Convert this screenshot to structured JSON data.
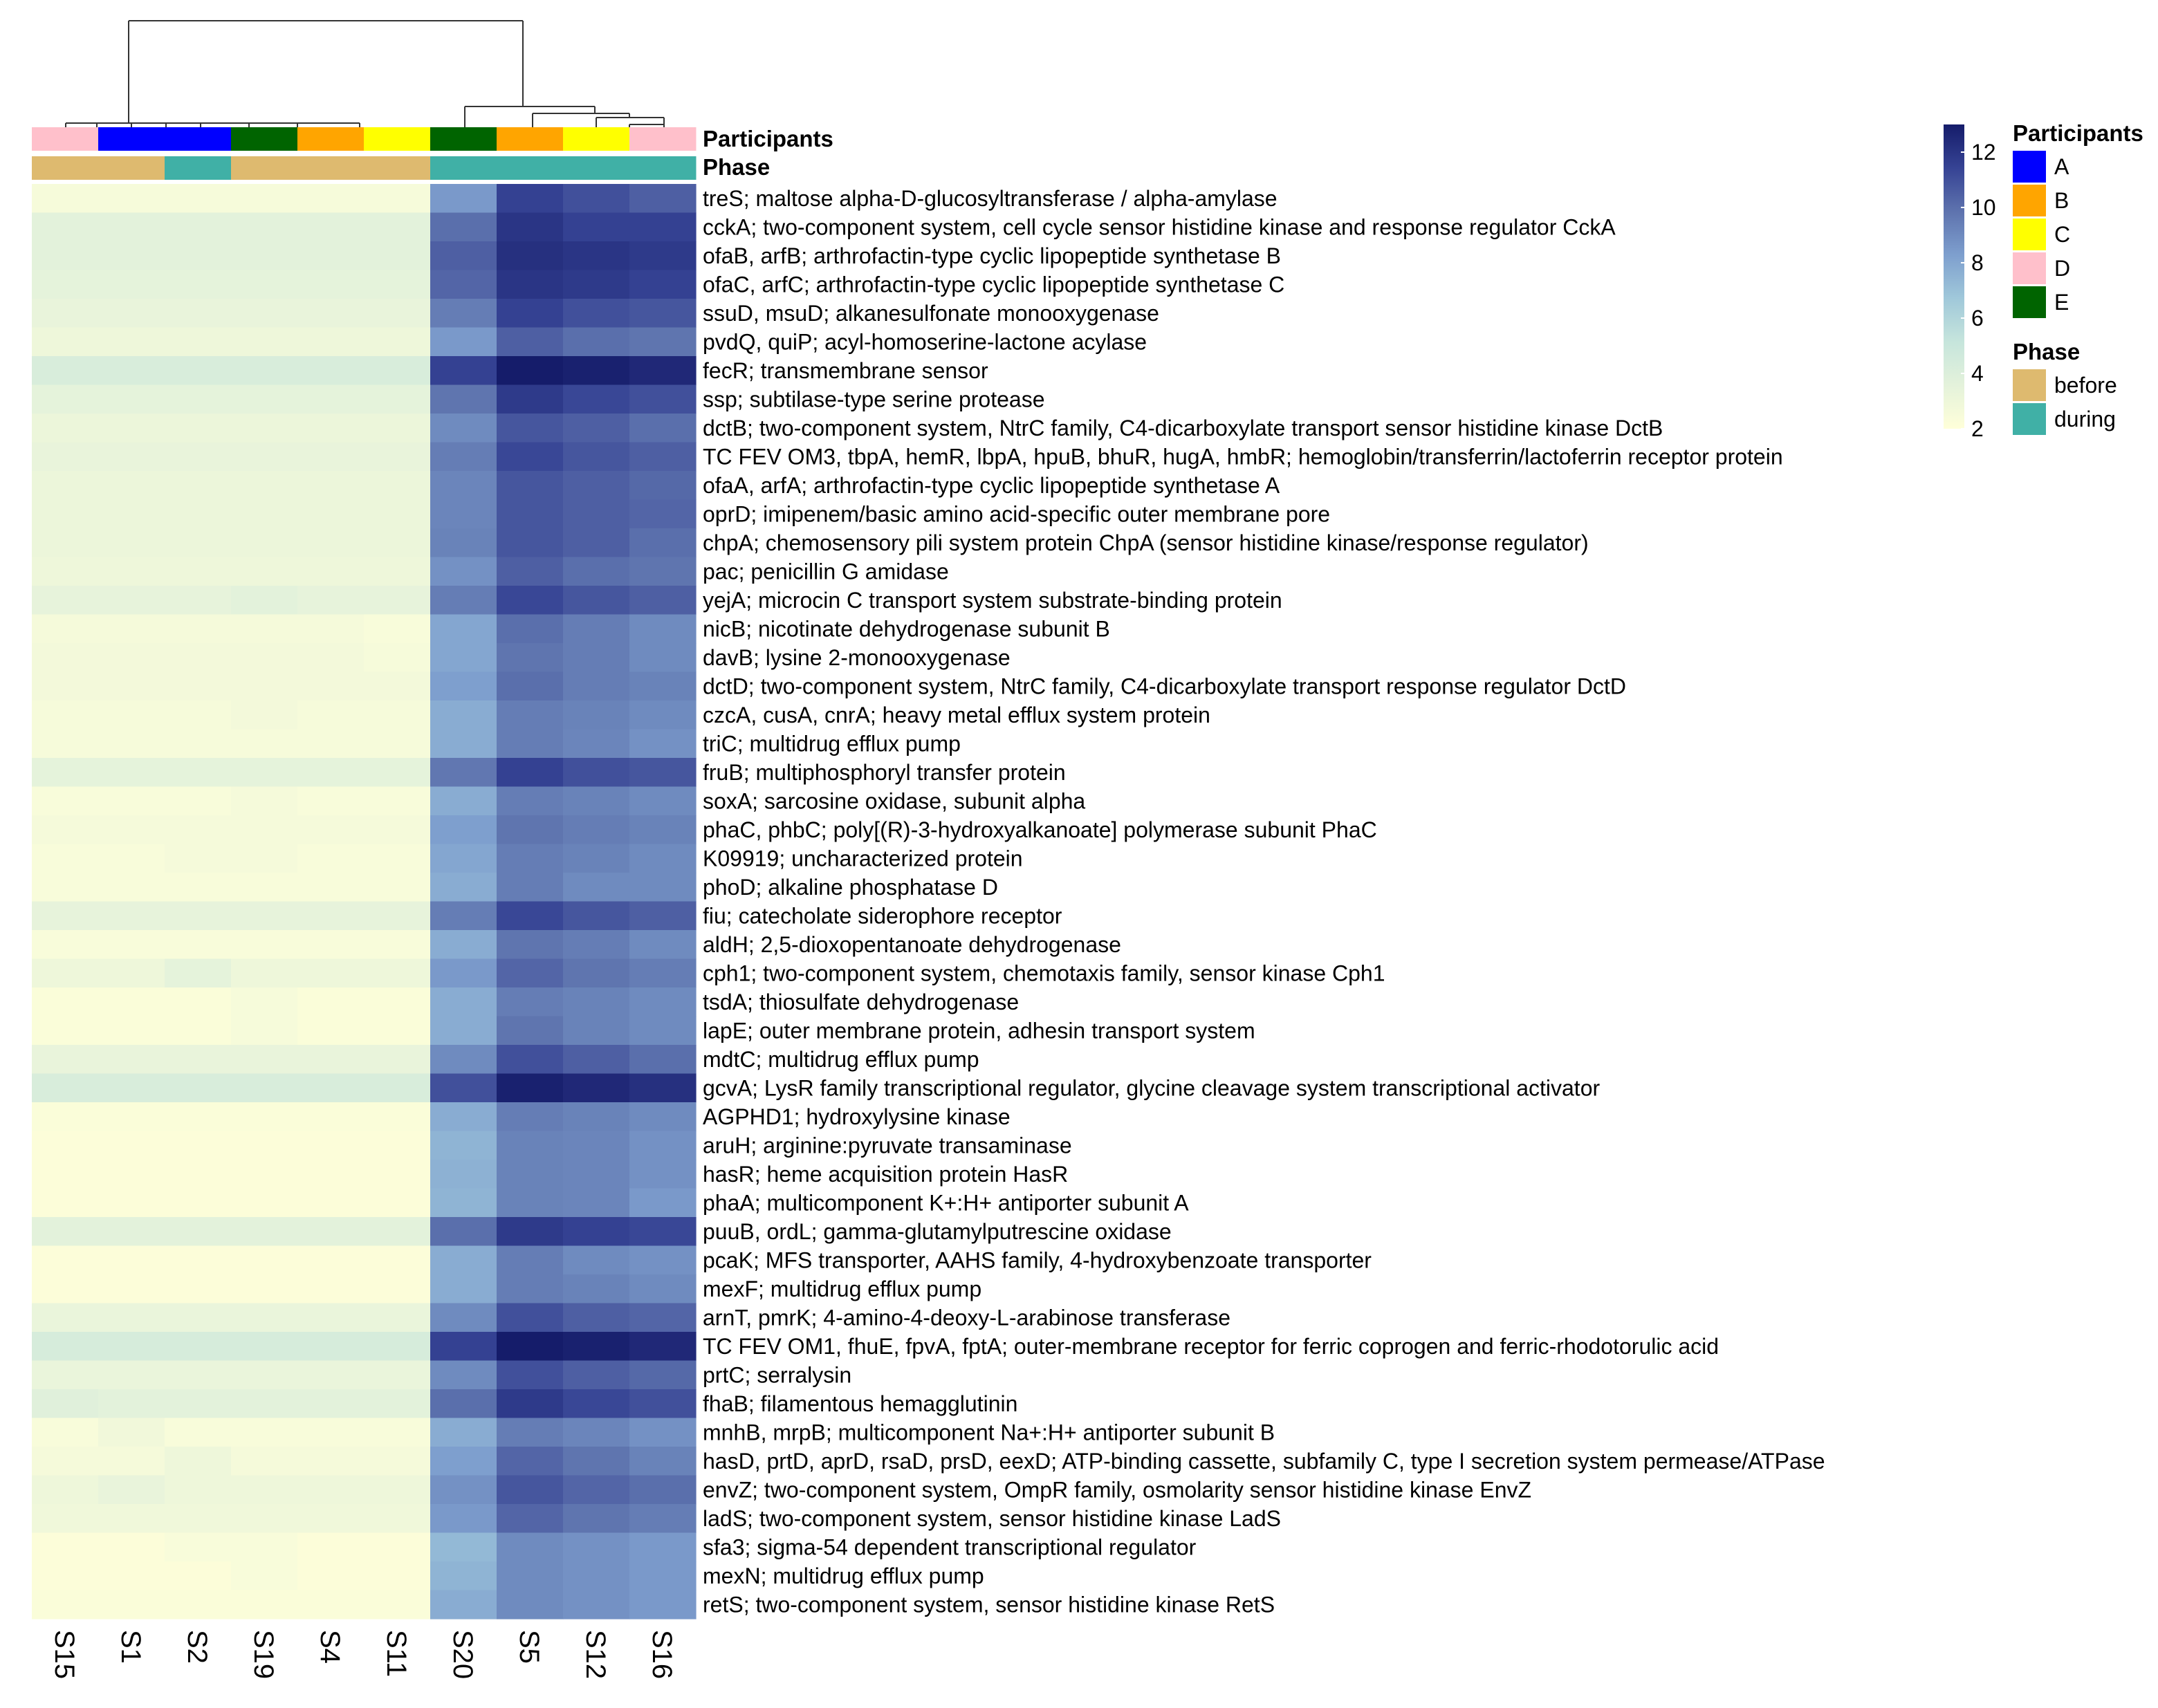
{
  "chart_data": {
    "type": "heatmap",
    "columns": [
      "S15",
      "S1",
      "S2",
      "S19",
      "S4",
      "S11",
      "S20",
      "S5",
      "S12",
      "S16"
    ],
    "annotations": {
      "participants": {
        "label": "Participants",
        "values": [
          "D",
          "A",
          "A",
          "E",
          "B",
          "C",
          "E",
          "B",
          "C",
          "D"
        ],
        "colors": {
          "A": "#0000FF",
          "B": "#FFA500",
          "C": "#FFFF00",
          "D": "#FFC0CB",
          "E": "#006400"
        }
      },
      "phase": {
        "label": "Phase",
        "values": [
          "before",
          "before",
          "during",
          "before",
          "before",
          "before",
          "during",
          "during",
          "during",
          "during"
        ],
        "colors": {
          "before": "#DEBA6F",
          "during": "#40B0A6"
        }
      }
    },
    "rows": [
      {
        "label": "treS; maltose alpha-D-glucosyltransferase / alpha-amylase",
        "values": [
          2.5,
          2.5,
          2.5,
          2.5,
          2.5,
          2.5,
          8.5,
          11.5,
          11,
          10.5
        ]
      },
      {
        "label": "cckA; two-component system, cell cycle sensor histidine kinase and response regulator CckA",
        "values": [
          3.6,
          3.6,
          3.6,
          3.6,
          3.6,
          3.6,
          10,
          12,
          11.5,
          11.5
        ]
      },
      {
        "label": "ofaB, arfB; arthrofactin-type cyclic lipopeptide synthetase B",
        "values": [
          3.6,
          3.6,
          3.6,
          3.6,
          3.6,
          3.6,
          10.5,
          12.2,
          12,
          11.8
        ]
      },
      {
        "label": "ofaC, arfC; arthrofactin-type cyclic lipopeptide synthetase C",
        "values": [
          3.5,
          3.5,
          3.5,
          3.5,
          3.5,
          3.5,
          10.3,
          12,
          11.8,
          11.5
        ]
      },
      {
        "label": "ssuD, msuD; alkanesulfonate monooxygenase",
        "values": [
          3.3,
          3.3,
          3.3,
          3.3,
          3.3,
          3.3,
          9.5,
          11.5,
          11,
          10.8
        ]
      },
      {
        "label": "pvdQ, quiP; acyl-homoserine-lactone acylase",
        "values": [
          3,
          3,
          3,
          3,
          3,
          3,
          8.5,
          10.5,
          10,
          9.8
        ]
      },
      {
        "label": "fecR; transmembrane sensor",
        "values": [
          4.2,
          4.2,
          4.2,
          4.2,
          4.2,
          4.2,
          11.5,
          13,
          12.8,
          12.5
        ]
      },
      {
        "label": "ssp; subtilase-type serine protease",
        "values": [
          3.5,
          3.5,
          3.5,
          3.5,
          3.5,
          3.5,
          9.8,
          11.8,
          11.3,
          11
        ]
      },
      {
        "label": "dctB; two-component system, NtrC family, C4-dicarboxylate transport sensor histidine kinase DctB",
        "values": [
          3.1,
          3.1,
          3.1,
          3.1,
          3.1,
          3.1,
          9,
          10.8,
          10.5,
          10
        ]
      },
      {
        "label": "TC FEV OM3, tbpA, hemR, lbpA, hpuB, bhuR, hugA, hmbR; hemoglobin/transferrin/lactoferrin receptor protein",
        "values": [
          3.3,
          3.3,
          3.3,
          3.3,
          3.3,
          3.3,
          9.5,
          11.3,
          10.8,
          10.5
        ]
      },
      {
        "label": "ofaA, arfA; arthrofactin-type cyclic lipopeptide synthetase A",
        "values": [
          3.1,
          3.1,
          3.1,
          3.1,
          3.1,
          3.1,
          9.2,
          10.8,
          10.5,
          10.2
        ]
      },
      {
        "label": "oprD; imipenem/basic amino acid-specific outer membrane pore",
        "values": [
          3.1,
          3.1,
          3.1,
          3.1,
          3.1,
          3.1,
          9.2,
          10.8,
          10.5,
          10.3
        ]
      },
      {
        "label": "chpA; chemosensory pili system protein ChpA (sensor histidine kinase/response regulator)",
        "values": [
          3.1,
          3.1,
          3.1,
          3.1,
          3.1,
          3.1,
          9.3,
          10.8,
          10.5,
          10
        ]
      },
      {
        "label": "pac; penicillin G amidase",
        "values": [
          3,
          3,
          3,
          3,
          3,
          3,
          8.8,
          10.5,
          10,
          9.8
        ]
      },
      {
        "label": "yejA; microcin C transport system substrate-binding protein",
        "values": [
          3.4,
          3.4,
          3.4,
          3.6,
          3.4,
          3.4,
          9.5,
          11.3,
          10.8,
          10.5
        ]
      },
      {
        "label": "nicB; nicotinate dehydrogenase subunit B",
        "values": [
          2.6,
          2.6,
          2.6,
          2.6,
          2.6,
          2.4,
          8,
          10,
          9.5,
          9
        ]
      },
      {
        "label": "davB; lysine 2-monooxygenase",
        "values": [
          2.7,
          2.7,
          2.7,
          2.7,
          2.7,
          2.5,
          8,
          9.8,
          9.5,
          9
        ]
      },
      {
        "label": "dctD; two-component system, NtrC family, C4-dicarboxylate transport response regulator DctD",
        "values": [
          2.7,
          2.7,
          2.7,
          2.7,
          2.7,
          2.7,
          8.3,
          10,
          9.5,
          9.3
        ]
      },
      {
        "label": "czcA, cusA, cnrA; heavy metal efflux system protein",
        "values": [
          2.5,
          2.5,
          2.5,
          2.7,
          2.5,
          2.5,
          7.8,
          9.5,
          9.3,
          9
        ]
      },
      {
        "label": "triC; multidrug efflux pump",
        "values": [
          2.5,
          2.5,
          2.5,
          2.5,
          2.5,
          2.5,
          7.8,
          9.5,
          9.2,
          8.8
        ]
      },
      {
        "label": "fruB; multiphosphoryl transfer protein",
        "values": [
          3.5,
          3.5,
          3.5,
          3.5,
          3.5,
          3.5,
          9.7,
          11.5,
          11,
          10.8
        ]
      },
      {
        "label": "soxA; sarcosine oxidase, subunit alpha",
        "values": [
          2.4,
          2.4,
          2.4,
          2.6,
          2.4,
          2.4,
          7.8,
          9.5,
          9.3,
          9
        ]
      },
      {
        "label": "phaC, phbC; poly[(R)-3-hydroxyalkanoate] polymerase subunit PhaC",
        "values": [
          2.6,
          2.6,
          2.6,
          2.6,
          2.6,
          2.6,
          8.3,
          9.8,
          9.5,
          9.3
        ]
      },
      {
        "label": "K09919; uncharacterized protein",
        "values": [
          2.4,
          2.4,
          2.6,
          2.6,
          2.4,
          2.4,
          8,
          9.5,
          9.3,
          9
        ]
      },
      {
        "label": "phoD; alkaline phosphatase D",
        "values": [
          2.4,
          2.4,
          2.4,
          2.4,
          2.4,
          2.4,
          7.8,
          9.5,
          9,
          9
        ]
      },
      {
        "label": "fiu; catecholate siderophore receptor",
        "values": [
          3.4,
          3.4,
          3.4,
          3.4,
          3.4,
          3.4,
          9.5,
          11.3,
          10.8,
          10.5
        ]
      },
      {
        "label": "aldH; 2,5-dioxopentanoate dehydrogenase",
        "values": [
          2.4,
          2.4,
          2.4,
          2.4,
          2.4,
          2.4,
          7.8,
          9.8,
          9.5,
          9
        ]
      },
      {
        "label": "cph1; two-component system, chemotaxis family, sensor kinase Cph1",
        "values": [
          3,
          3,
          3.5,
          3,
          3,
          3,
          8.5,
          10.3,
          9.8,
          9.5
        ]
      },
      {
        "label": "tsdA; thiosulfate dehydrogenase",
        "values": [
          2.3,
          2.3,
          2.3,
          2.5,
          2.3,
          2.3,
          7.8,
          9.5,
          9.3,
          9
        ]
      },
      {
        "label": "lapE; outer membrane protein, adhesin transport system",
        "values": [
          2.3,
          2.3,
          2.3,
          2.5,
          2.3,
          2.3,
          7.8,
          9.8,
          9.3,
          9
        ]
      },
      {
        "label": "mdtC; multidrug efflux pump",
        "values": [
          3.3,
          3.3,
          3.3,
          3.3,
          3.3,
          3.3,
          9,
          11,
          10.5,
          10
        ]
      },
      {
        "label": "gcvA; LysR family transcriptional regulator, glycine cleavage system transcriptional activator",
        "values": [
          4.2,
          4.2,
          4.2,
          4.2,
          4.2,
          4.2,
          11,
          12.8,
          12.5,
          12.2
        ]
      },
      {
        "label": "AGPHD1; hydroxylysine kinase",
        "values": [
          2.3,
          2.3,
          2.3,
          2.3,
          2.3,
          2.3,
          7.8,
          9.5,
          9.3,
          9
        ]
      },
      {
        "label": "aruH; arginine:pyruvate transaminase",
        "values": [
          2.2,
          2.2,
          2.2,
          2.2,
          2.2,
          2.2,
          7.5,
          9.3,
          9.2,
          8.8
        ]
      },
      {
        "label": "hasR; heme acquisition protein HasR",
        "values": [
          2.2,
          2.2,
          2.2,
          2.2,
          2.2,
          2.2,
          7.6,
          9.3,
          9.2,
          8.8
        ]
      },
      {
        "label": "phaA; multicomponent K+:H+ antiporter subunit A",
        "values": [
          2.2,
          2.2,
          2.2,
          2.2,
          2.2,
          2.2,
          7.5,
          9.3,
          9.2,
          8.5
        ]
      },
      {
        "label": "puuB, ordL; gamma-glutamylputrescine oxidase",
        "values": [
          3.6,
          3.6,
          3.6,
          3.6,
          3.6,
          3.6,
          10,
          11.8,
          11.5,
          11.3
        ]
      },
      {
        "label": "pcaK; MFS transporter, AAHS family, 4-hydroxybenzoate transporter",
        "values": [
          2.2,
          2.2,
          2.2,
          2.2,
          2.2,
          2.2,
          7.8,
          9.5,
          9,
          8.8
        ]
      },
      {
        "label": "mexF; multidrug efflux pump",
        "values": [
          2.2,
          2.2,
          2.2,
          2.2,
          2.2,
          2.2,
          7.8,
          9.5,
          9.3,
          9
        ]
      },
      {
        "label": "arnT, pmrK; 4-amino-4-deoxy-L-arabinose transferase",
        "values": [
          3.2,
          3.2,
          3.2,
          3.2,
          3.2,
          3.2,
          9,
          11,
          10.5,
          10.3
        ]
      },
      {
        "label": "TC FEV OM1, fhuE, fpvA, fptA; outer-membrane receptor for ferric coprogen and ferric-rhodotorulic acid",
        "values": [
          4.3,
          4.3,
          4.3,
          4.3,
          4.3,
          4.3,
          11.5,
          13,
          12.8,
          12.5
        ]
      },
      {
        "label": "prtC; serralysin",
        "values": [
          3.2,
          3.2,
          3.2,
          3.2,
          3.2,
          3.2,
          9,
          11,
          10.5,
          10.2
        ]
      },
      {
        "label": "fhaB; filamentous hemagglutinin",
        "values": [
          3.8,
          3.6,
          3.6,
          3.6,
          3.6,
          3.6,
          10,
          11.8,
          11.3,
          11
        ]
      },
      {
        "label": "mnhB, mrpB; multicomponent Na+:H+ antiporter subunit B",
        "values": [
          2.4,
          2.8,
          2.4,
          2.4,
          2.4,
          2.4,
          7.8,
          9.5,
          9.2,
          8.8
        ]
      },
      {
        "label": "hasD, prtD, aprD, rsaD, prsD, eexD; ATP-binding cassette, subfamily C, type I secretion system permease/ATPase",
        "values": [
          2.6,
          2.6,
          3,
          2.6,
          2.6,
          2.6,
          8.3,
          10.3,
          9.8,
          9.3
        ]
      },
      {
        "label": "envZ; two-component system, OmpR family, osmolarity sensor histidine kinase EnvZ",
        "values": [
          3,
          3.3,
          3,
          3,
          3,
          3,
          8.8,
          10.8,
          10.3,
          10
        ]
      },
      {
        "label": "ladS; two-component system, sensor histidine kinase LadS",
        "values": [
          2.9,
          2.9,
          2.9,
          2.9,
          2.9,
          2.9,
          8.5,
          10.3,
          9.8,
          9.5
        ]
      },
      {
        "label": "sfa3; sigma-54 dependent transcriptional regulator",
        "values": [
          2.2,
          2.2,
          2.4,
          2.4,
          2.2,
          2.2,
          7.3,
          9,
          8.8,
          8.5
        ]
      },
      {
        "label": "mexN; multidrug efflux pump",
        "values": [
          2.2,
          2.2,
          2.2,
          2.4,
          2.2,
          2.2,
          7.5,
          9,
          8.8,
          8.5
        ]
      },
      {
        "label": "retS; two-component system, sensor histidine kinase RetS",
        "values": [
          2.3,
          2.3,
          2.3,
          2.3,
          2.3,
          2.3,
          7.8,
          9,
          8.8,
          8.5
        ]
      }
    ],
    "scale": {
      "min": 2,
      "max": 13,
      "ticks": [
        2,
        4,
        6,
        8,
        10,
        12
      ],
      "stops": [
        "#FFFFD9",
        "#E4F2DB",
        "#C6E5DC",
        "#A0C8DA",
        "#7E9FCE",
        "#5E73AE",
        "#364394",
        "#151C6A"
      ]
    },
    "dendrogram": "two top-level clusters: [S15,S1,S2,S19,S4,S11] and [S20,S5,S12,S16]",
    "legend": {
      "participants_title": "Participants",
      "participants_items": [
        "A",
        "B",
        "C",
        "D",
        "E"
      ],
      "phase_title": "Phase",
      "phase_items": [
        "before",
        "during"
      ]
    }
  }
}
